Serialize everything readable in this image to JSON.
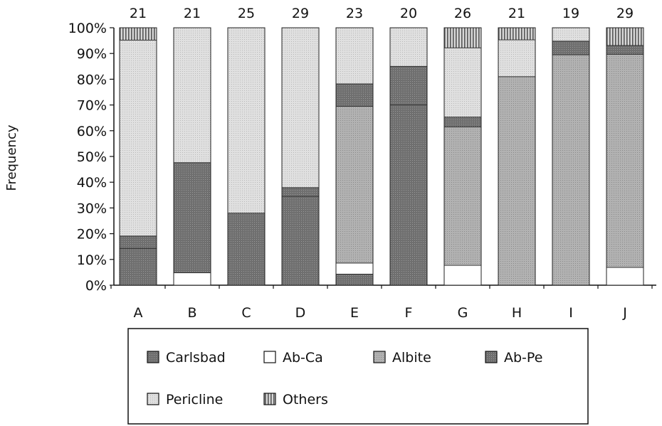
{
  "chart_data": {
    "type": "bar",
    "stacked": true,
    "percent": true,
    "title": "",
    "xlabel": "",
    "ylabel": "Frequency",
    "ylim": [
      0,
      100
    ],
    "yticks": [
      "0%",
      "10%",
      "20%",
      "30%",
      "40%",
      "50%",
      "60%",
      "70%",
      "80%",
      "90%",
      "100%"
    ],
    "grid": false,
    "legend_position": "bottom",
    "categories": [
      "A",
      "B",
      "C",
      "D",
      "E",
      "F",
      "G",
      "H",
      "I",
      "J"
    ],
    "counts": [
      "21",
      "21",
      "25",
      "29",
      "23",
      "20",
      "26",
      "21",
      "19",
      "29"
    ],
    "series": [
      {
        "name": "Carlsbad",
        "color": "#7a7a7a",
        "pattern": "dark",
        "values": [
          14.3,
          0,
          28.0,
          34.5,
          4.3,
          70.0,
          0,
          0,
          0,
          0
        ]
      },
      {
        "name": "Ab-Ca",
        "color": "#ffffff",
        "pattern": "white",
        "values": [
          0,
          4.8,
          0,
          0,
          4.3,
          0,
          7.7,
          0,
          0,
          6.9
        ]
      },
      {
        "name": "Albite",
        "color": "#a9a9a9",
        "pattern": "medium",
        "values": [
          0,
          0,
          0,
          0,
          60.9,
          0,
          53.8,
          81.0,
          89.5,
          82.8
        ]
      },
      {
        "name": "Ab-Pe",
        "color": "#6e6e6e",
        "pattern": "dark",
        "values": [
          4.8,
          42.8,
          0,
          3.4,
          8.7,
          15.0,
          3.8,
          0,
          5.3,
          3.4
        ]
      },
      {
        "name": "Pericline",
        "color": "#d6d6d6",
        "pattern": "light",
        "values": [
          76.1,
          52.4,
          72.0,
          62.1,
          21.8,
          15.0,
          26.9,
          14.3,
          5.2,
          0
        ]
      },
      {
        "name": "Others",
        "color": "#9a9a9a",
        "pattern": "vertical-stripes",
        "values": [
          4.8,
          0,
          0,
          0,
          0,
          0,
          7.8,
          4.7,
          0,
          6.9
        ]
      }
    ]
  }
}
